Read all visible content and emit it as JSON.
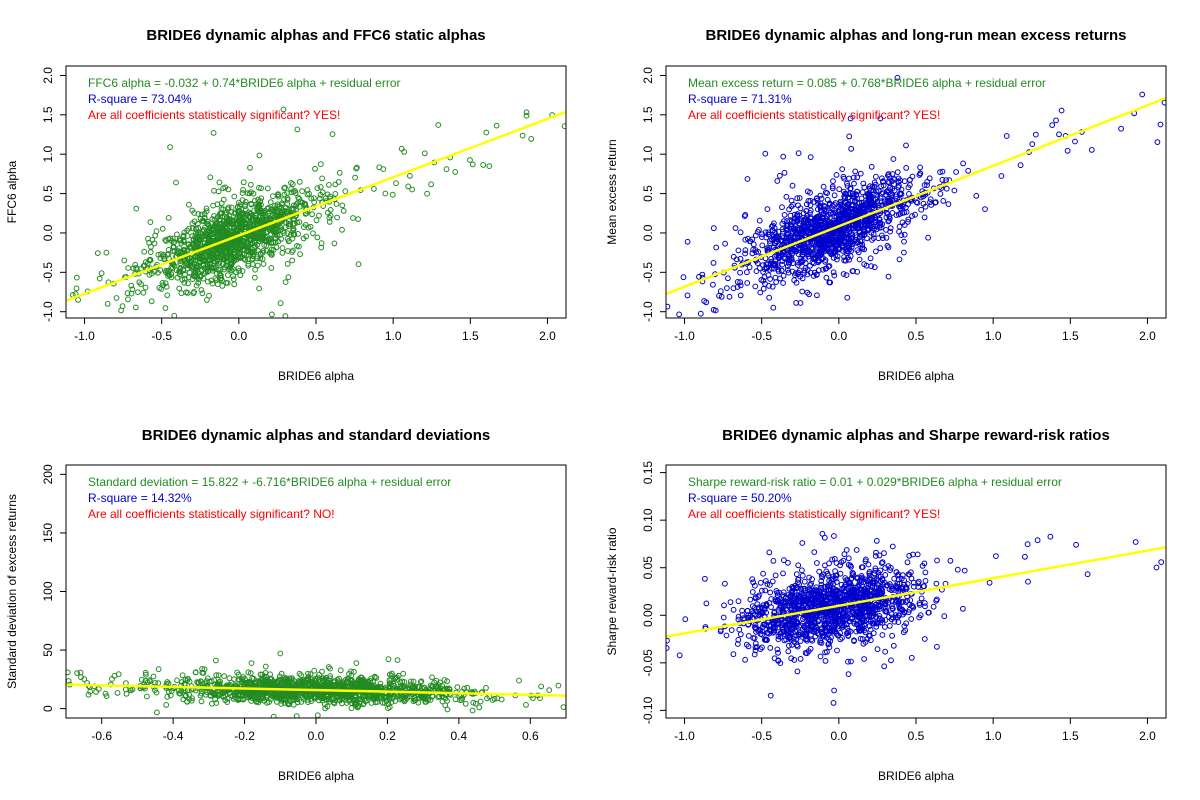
{
  "colors": {
    "green": "#228b22",
    "blue": "#0000cd",
    "red": "#ff0000",
    "yellow": "#ffff00"
  },
  "chart_data": [
    {
      "type": "scatter",
      "title": "BRIDE6 dynamic alphas and FFC6 static alphas",
      "xlabel": "BRIDE6 alpha",
      "ylabel": "FFC6 alpha",
      "xlim": [
        -1.12,
        2.12
      ],
      "ylim": [
        -1.08,
        2.12
      ],
      "xticks": [
        "-1.0",
        "-0.5",
        "0.0",
        "0.5",
        "1.0",
        "1.5",
        "2.0"
      ],
      "yticks": [
        "-1.0",
        "-0.5",
        "0.0",
        "0.5",
        "1.0",
        "1.5",
        "2.0"
      ],
      "point_color": "green",
      "fit": {
        "intercept": -0.032,
        "slope": 0.74
      },
      "cloud": {
        "x_center": -0.05,
        "x_sd": 0.27,
        "resid_sd": 0.21,
        "n": 1400,
        "seed": 11
      },
      "annotations": [
        {
          "text": "FFC6 alpha = -0.032 + 0.74*BRIDE6 alpha + residual error",
          "color": "green"
        },
        {
          "text": "R-square = 73.04%",
          "color": "blue"
        },
        {
          "text": "Are all coefficients statistically significant?  YES!",
          "color": "red"
        }
      ]
    },
    {
      "type": "scatter",
      "title": "BRIDE6 dynamic alphas and long-run mean excess returns",
      "xlabel": "BRIDE6 alpha",
      "ylabel": "Mean excess return",
      "xlim": [
        -1.12,
        2.12
      ],
      "ylim": [
        -1.08,
        2.12
      ],
      "xticks": [
        "-1.0",
        "-0.5",
        "0.0",
        "0.5",
        "1.0",
        "1.5",
        "2.0"
      ],
      "yticks": [
        "-1.0",
        "-0.5",
        "0.0",
        "0.5",
        "1.0",
        "1.5",
        "2.0"
      ],
      "point_color": "blue",
      "fit": {
        "intercept": 0.085,
        "slope": 0.768
      },
      "cloud": {
        "x_center": -0.05,
        "x_sd": 0.28,
        "resid_sd": 0.23,
        "n": 1400,
        "seed": 23
      },
      "annotations": [
        {
          "text": "Mean excess return = 0.085 + 0.768*BRIDE6 alpha + residual error",
          "color": "green"
        },
        {
          "text": "R-square = 71.31%",
          "color": "blue"
        },
        {
          "text": "Are all coefficients statistically significant?  YES!",
          "color": "red"
        }
      ]
    },
    {
      "type": "scatter",
      "title": "BRIDE6 dynamic alphas and standard deviations",
      "xlabel": "BRIDE6 alpha",
      "ylabel": "Standard deviation of excess returns",
      "xlim": [
        -0.7,
        0.7
      ],
      "ylim": [
        -8,
        208
      ],
      "xticks": [
        "-0.6",
        "-0.4",
        "-0.2",
        "0.0",
        "0.2",
        "0.4",
        "0.6"
      ],
      "yticks": [
        "0",
        "50",
        "100",
        "150",
        "200"
      ],
      "point_color": "green",
      "fit": {
        "intercept": 15.822,
        "slope": -6.716
      },
      "cloud": {
        "x_center": 0.0,
        "x_sd": 0.2,
        "resid_sd": 5.5,
        "n": 1400,
        "seed": 37
      },
      "annotations": [
        {
          "text": "Standard deviation = 15.822 + -6.716*BRIDE6 alpha + residual error",
          "color": "green"
        },
        {
          "text": "R-square = 14.32%",
          "color": "blue"
        },
        {
          "text": "Are all coefficients statistically significant?  NO!",
          "color": "red"
        }
      ]
    },
    {
      "type": "scatter",
      "title": "BRIDE6 dynamic alphas and Sharpe reward-risk ratios",
      "xlabel": "BRIDE6 alpha",
      "ylabel": "Sharpe reward-risk ratio",
      "xlim": [
        -1.12,
        2.12
      ],
      "ylim": [
        -0.108,
        0.158
      ],
      "xticks": [
        "-1.0",
        "-0.5",
        "0.0",
        "0.5",
        "1.0",
        "1.5",
        "2.0"
      ],
      "yticks": [
        "-0.10",
        "-0.05",
        "0.00",
        "0.05",
        "0.10",
        "0.15"
      ],
      "point_color": "blue",
      "fit": {
        "intercept": 0.01,
        "slope": 0.029
      },
      "cloud": {
        "x_center": -0.05,
        "x_sd": 0.28,
        "resid_sd": 0.018,
        "n": 1400,
        "seed": 53
      },
      "annotations": [
        {
          "text": "Sharpe reward-risk ratio = 0.01 + 0.029*BRIDE6 alpha + residual error",
          "color": "green"
        },
        {
          "text": "R-square = 50.20%",
          "color": "blue"
        },
        {
          "text": "Are all coefficients statistically significant?  YES!",
          "color": "red"
        }
      ]
    }
  ]
}
